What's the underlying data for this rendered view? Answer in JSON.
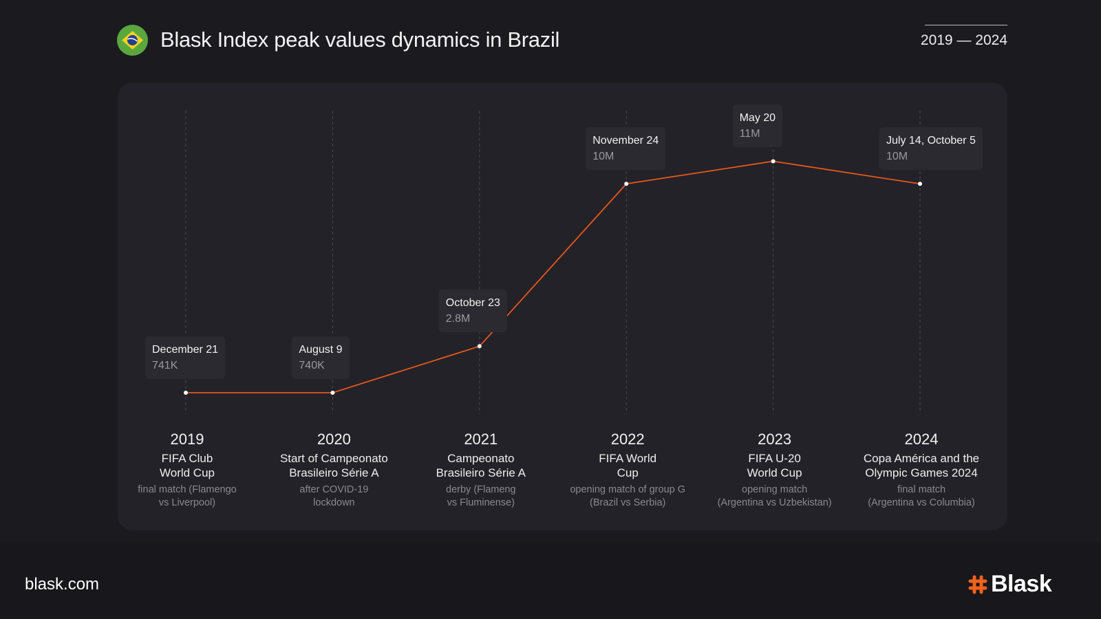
{
  "header": {
    "title": "Blask Index peak values dynamics in Brazil",
    "range": "2019 — 2024"
  },
  "footer": {
    "site": "blask.com",
    "logo": "Blask"
  },
  "colors": {
    "line": "#e8561b",
    "accent": "#f0621e"
  },
  "chart_data": {
    "type": "line",
    "title": "Blask Index peak values dynamics in Brazil",
    "x": [
      "2019",
      "2020",
      "2021",
      "2022",
      "2023",
      "2024"
    ],
    "unit": "millions",
    "values": [
      0.741,
      0.74,
      2.8,
      10,
      11,
      10
    ],
    "points": [
      {
        "year": "2019",
        "date": "December 21",
        "label": "741K",
        "event": "FIFA Club World Cup",
        "event_lines": [
          "FIFA Club",
          "World Cup"
        ],
        "note_lines": [
          "final match (Flamengo",
          "vs Liverpool)"
        ]
      },
      {
        "year": "2020",
        "date": "August 9",
        "label": "740K",
        "event_lines": [
          "Start of Campeonato",
          "Brasileiro Série A"
        ],
        "note_lines": [
          "after COVID-19",
          "lockdown"
        ]
      },
      {
        "year": "2021",
        "date": "October 23",
        "label": "2.8M",
        "event_lines": [
          "Campeonato",
          "Brasileiro Série A"
        ],
        "note_lines": [
          "derby (Flameng",
          "vs Fluminense)"
        ]
      },
      {
        "year": "2022",
        "date": "November 24",
        "label": "10M",
        "event_lines": [
          "FIFA World",
          "Cup"
        ],
        "note_lines": [
          "opening match of group G",
          "(Brazil vs Serbia)"
        ]
      },
      {
        "year": "2023",
        "date": "May 20",
        "label": "11M",
        "event_lines": [
          "FIFA U-20",
          "World Cup"
        ],
        "note_lines": [
          "opening match",
          "(Argentina vs Uzbekistan)"
        ]
      },
      {
        "year": "2024",
        "date": "July 14, October 5",
        "label": "10M",
        "event_lines": [
          "Copa América and the",
          "Olympic Games 2024"
        ],
        "note_lines": [
          "final match",
          "(Argentina vs Columbia)"
        ]
      }
    ]
  }
}
